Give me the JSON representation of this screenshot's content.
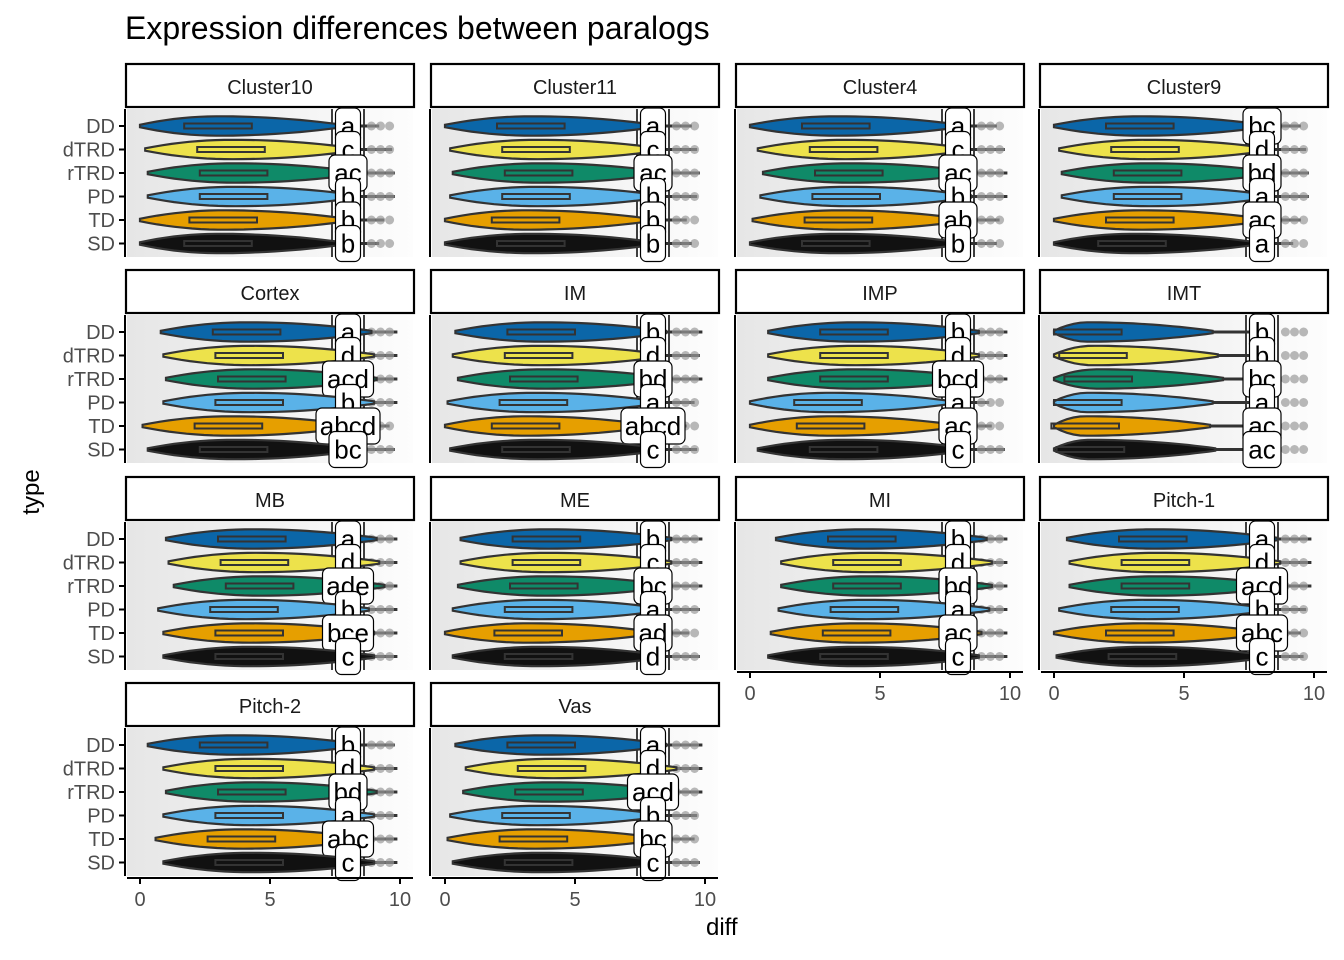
{
  "chart_data": {
    "type": "violin",
    "title": "Expression differences between paralogs",
    "xlabel": "diff",
    "ylabel": "type",
    "xlim": [
      -0.5,
      10.5
    ],
    "x_ticks": [
      "0",
      "5",
      "10"
    ],
    "x_tick_values": [
      0,
      5,
      10
    ],
    "categories": [
      "DD",
      "dTRD",
      "rTRD",
      "PD",
      "TD",
      "SD"
    ],
    "colors": {
      "DD": "#0b66a8",
      "dTRD": "#ede24b",
      "rTRD": "#0f8a68",
      "PD": "#5ab2e8",
      "TD": "#e69f00",
      "SD": "#111111"
    },
    "label_position_x": 8.0,
    "layout": "facet_wrap 4 columns",
    "facets": [
      {
        "name": "Cluster10",
        "letters": [
          "a",
          "c",
          "ac",
          "b",
          "b",
          "b"
        ],
        "medians": [
          3.0,
          3.5,
          3.6,
          3.6,
          3.2,
          3.0
        ]
      },
      {
        "name": "Cluster11",
        "letters": [
          "a",
          "c",
          "ac",
          "b",
          "b",
          "b"
        ],
        "medians": [
          3.3,
          3.5,
          3.6,
          3.5,
          3.1,
          3.3
        ]
      },
      {
        "name": "Cluster4",
        "letters": [
          "a",
          "c",
          "ac",
          "b",
          "ab",
          "b"
        ],
        "medians": [
          3.3,
          3.6,
          3.8,
          3.7,
          3.4,
          3.3
        ]
      },
      {
        "name": "Cluster9",
        "letters": [
          "bc",
          "d",
          "bd",
          "a",
          "ac",
          "a"
        ],
        "medians": [
          3.3,
          3.5,
          3.6,
          3.6,
          3.3,
          3.0
        ]
      },
      {
        "name": "Cortex",
        "letters": [
          "a",
          "d",
          "acd",
          "b",
          "abcd",
          "bc"
        ],
        "medians": [
          4.1,
          4.2,
          4.3,
          4.2,
          3.4,
          3.6
        ]
      },
      {
        "name": "IM",
        "letters": [
          "b",
          "d",
          "bd",
          "a",
          "abcd",
          "c"
        ],
        "medians": [
          3.7,
          3.6,
          3.8,
          3.4,
          3.1,
          3.5
        ]
      },
      {
        "name": "IMP",
        "letters": [
          "b",
          "d",
          "bcd",
          "a",
          "ac",
          "c"
        ],
        "medians": [
          4.0,
          4.0,
          4.0,
          3.0,
          3.1,
          3.6
        ]
      },
      {
        "name": "IMT",
        "letters": [
          "b",
          "b",
          "bc",
          "a",
          "ac",
          "ac"
        ],
        "medians": [
          1.3,
          1.5,
          1.7,
          1.3,
          1.2,
          1.4
        ]
      },
      {
        "name": "MB",
        "letters": [
          "a",
          "d",
          "ade",
          "b",
          "bce",
          "c"
        ],
        "medians": [
          4.3,
          4.4,
          4.6,
          4.0,
          4.2,
          4.2
        ]
      },
      {
        "name": "ME",
        "letters": [
          "b",
          "c",
          "bc",
          "a",
          "ad",
          "d"
        ],
        "medians": [
          3.9,
          3.9,
          3.8,
          3.6,
          3.2,
          3.6
        ]
      },
      {
        "name": "MI",
        "letters": [
          "b",
          "d",
          "bd",
          "a",
          "ac",
          "c"
        ],
        "medians": [
          4.3,
          4.5,
          4.5,
          4.4,
          4.1,
          4.0
        ]
      },
      {
        "name": "Pitch-1",
        "letters": [
          "a",
          "d",
          "acd",
          "b",
          "abc",
          "c"
        ],
        "medians": [
          3.8,
          3.9,
          3.9,
          3.5,
          3.3,
          3.4
        ]
      },
      {
        "name": "Pitch-2",
        "letters": [
          "b",
          "d",
          "bd",
          "a",
          "abc",
          "c"
        ],
        "medians": [
          3.6,
          4.2,
          4.3,
          4.2,
          3.9,
          4.2
        ]
      },
      {
        "name": "Vas",
        "letters": [
          "a",
          "d",
          "acd",
          "b",
          "bc",
          "c"
        ],
        "medians": [
          3.7,
          4.1,
          4.0,
          3.5,
          3.4,
          3.6
        ]
      }
    ]
  }
}
